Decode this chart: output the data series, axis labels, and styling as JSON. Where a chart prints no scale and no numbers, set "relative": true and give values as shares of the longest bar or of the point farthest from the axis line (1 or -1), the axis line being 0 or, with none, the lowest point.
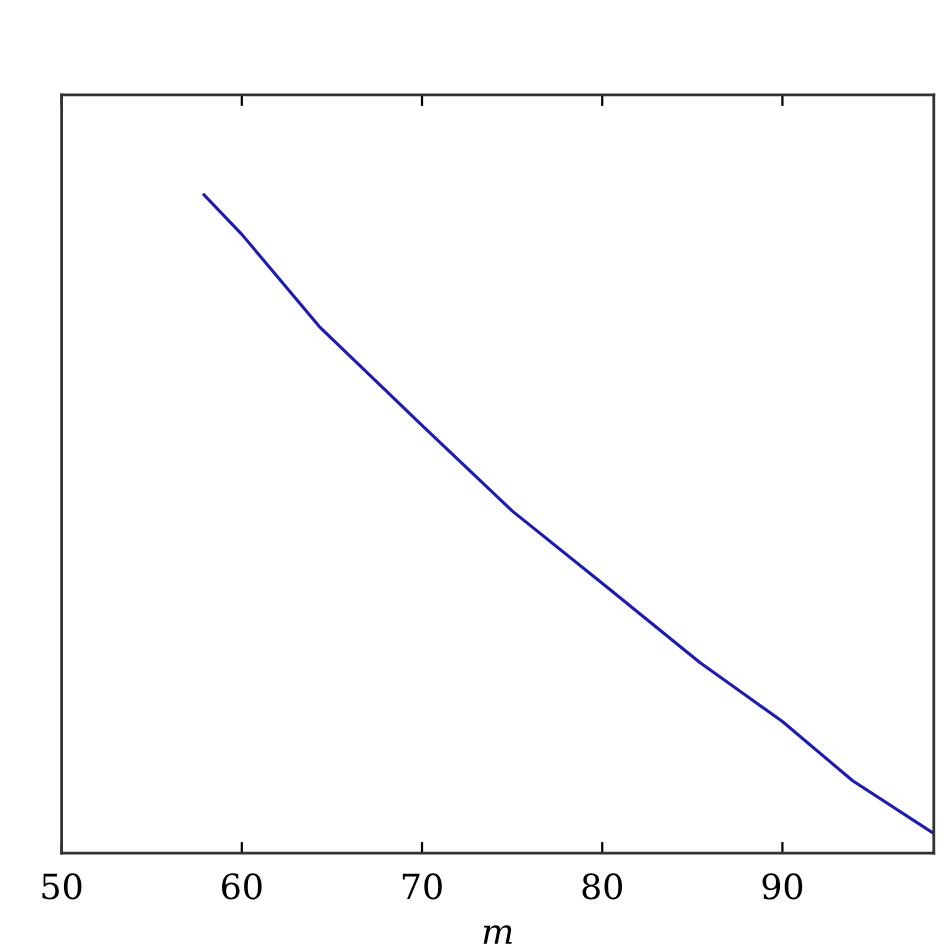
{
  "chart_data": {
    "type": "line",
    "xlabel": "m",
    "relative": true,
    "tick_labels": "x",
    "x": [
      57.9,
      60,
      64.3,
      70,
      75,
      80,
      85.4,
      90,
      93.9,
      98.4
    ],
    "values": [
      1.0,
      0.94,
      0.8,
      0.65,
      0.52,
      0.41,
      0.29,
      0.2,
      0.11,
      0.03
    ],
    "color": "#1c1cb4",
    "xlim": [
      50,
      98.4
    ],
    "xticks": [
      50,
      60,
      70,
      80,
      90
    ]
  }
}
